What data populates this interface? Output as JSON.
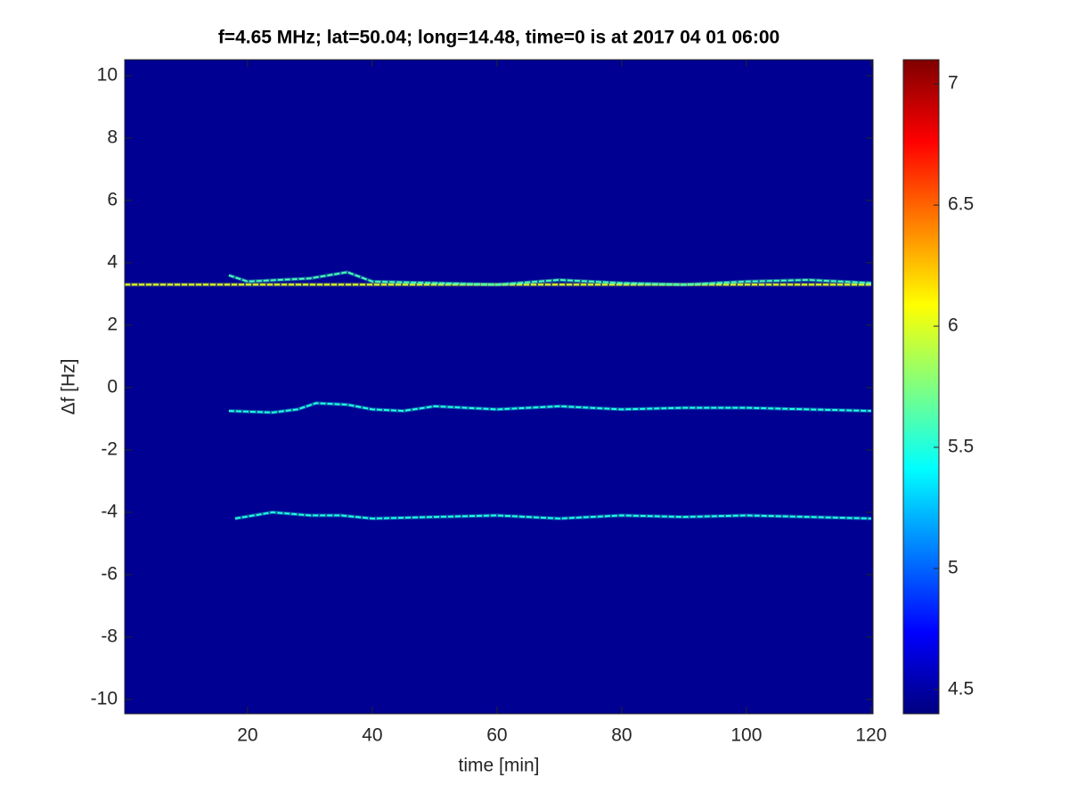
{
  "chart_data": {
    "type": "spectrogram",
    "title": "f=4.65 MHz;  lat=50.04; long=14.48, time=0 is at 2017 04 01 06:00",
    "xlabel": "time [min]",
    "ylabel": "Δf [Hz]",
    "xlim": [
      0.3,
      120.3
    ],
    "ylim": [
      -10.46,
      10.51
    ],
    "xticks": [
      20,
      40,
      60,
      80,
      100,
      120
    ],
    "yticks": [
      -10,
      -8,
      -6,
      -4,
      -2,
      0,
      2,
      4,
      6,
      8,
      10
    ],
    "colormap": "jet",
    "clim": [
      4.4,
      7.1
    ],
    "cticks": [
      4.5,
      5,
      5.5,
      6,
      6.5,
      7
    ],
    "background_level": 4.45,
    "series": [
      {
        "x": [
          0.3,
          20,
          40,
          60,
          80,
          100,
          120
        ],
        "values": [
          3.3,
          3.3,
          3.3,
          3.3,
          3.3,
          3.3,
          3.3
        ],
        "level": 6.0
      },
      {
        "x": [
          17,
          20,
          25,
          30,
          36,
          40,
          50,
          60,
          70,
          80,
          90,
          100,
          110,
          120
        ],
        "values": [
          3.6,
          3.4,
          3.45,
          3.5,
          3.7,
          3.4,
          3.35,
          3.3,
          3.45,
          3.35,
          3.3,
          3.4,
          3.45,
          3.35
        ],
        "level": 5.6
      },
      {
        "x": [
          17,
          24,
          28,
          31,
          36,
          40,
          45,
          50,
          60,
          70,
          80,
          90,
          100,
          110,
          120
        ],
        "values": [
          -0.75,
          -0.8,
          -0.7,
          -0.5,
          -0.55,
          -0.7,
          -0.75,
          -0.6,
          -0.7,
          -0.6,
          -0.7,
          -0.65,
          -0.65,
          -0.7,
          -0.75
        ],
        "level": 5.5
      },
      {
        "x": [
          18,
          24,
          30,
          35,
          40,
          50,
          60,
          70,
          80,
          90,
          100,
          110,
          120
        ],
        "values": [
          -4.2,
          -4.0,
          -4.1,
          -4.1,
          -4.2,
          -4.15,
          -4.1,
          -4.2,
          -4.1,
          -4.15,
          -4.1,
          -4.15,
          -4.2
        ],
        "level": 5.5
      }
    ]
  }
}
